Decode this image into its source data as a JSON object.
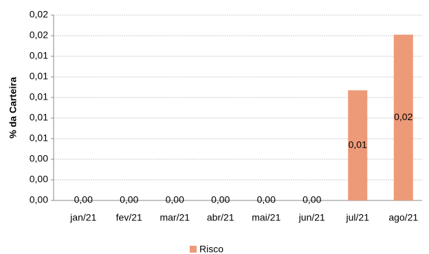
{
  "chart_data": {
    "type": "bar",
    "y_label": "% da Carteira",
    "categories": [
      "jan/21",
      "fev/21",
      "mar/21",
      "abr/21",
      "mai/21",
      "jun/21",
      "jul/21",
      "ago/21"
    ],
    "series": [
      {
        "name": "Risco",
        "color": "#ED9A78",
        "values": [
          0,
          0,
          0,
          0,
          0,
          0,
          0.0107,
          0.0161
        ],
        "value_labels": [
          "0,00",
          "0,00",
          "0,00",
          "0,00",
          "0,00",
          "0,00",
          "0,01",
          "0,02"
        ]
      }
    ],
    "ylim": [
      0,
      0.018
    ],
    "yticks": [
      {
        "value": 0,
        "label": "0,00"
      },
      {
        "value": 0.002,
        "label": "0,00"
      },
      {
        "value": 0.004,
        "label": "0,00"
      },
      {
        "value": 0.006,
        "label": "0,01"
      },
      {
        "value": 0.008,
        "label": "0,01"
      },
      {
        "value": 0.01,
        "label": "0,01"
      },
      {
        "value": 0.012,
        "label": "0,01"
      },
      {
        "value": 0.014,
        "label": "0,01"
      },
      {
        "value": 0.016,
        "label": "0,02"
      },
      {
        "value": 0.018,
        "label": "0,02"
      }
    ],
    "grid": true,
    "legend": "bottom"
  }
}
